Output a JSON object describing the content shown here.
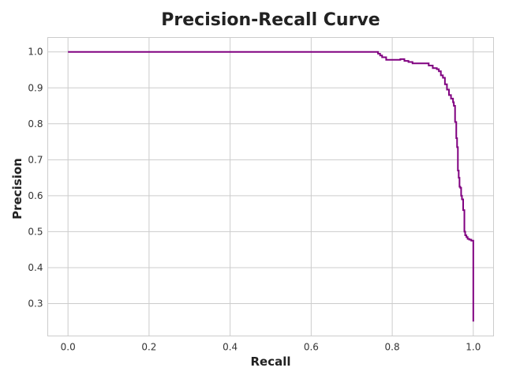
{
  "chart_data": {
    "type": "line",
    "title": "Precision-Recall Curve",
    "xlabel": "Recall",
    "ylabel": "Precision",
    "xlim": [
      -0.05,
      1.05
    ],
    "ylim": [
      0.21,
      1.04
    ],
    "xticks": [
      0.0,
      0.2,
      0.4,
      0.6,
      0.8,
      1.0
    ],
    "xtick_labels": [
      "0.0",
      "0.2",
      "0.4",
      "0.6",
      "0.8",
      "1.0"
    ],
    "yticks": [
      0.3,
      0.4,
      0.5,
      0.6,
      0.7,
      0.8,
      0.9,
      1.0
    ],
    "ytick_labels": [
      "0.3",
      "0.4",
      "0.5",
      "0.6",
      "0.7",
      "0.8",
      "0.9",
      "1.0"
    ],
    "grid": true,
    "line_color": "#800080",
    "series": [
      {
        "step": true,
        "x": [
          0.0,
          0.76,
          0.765,
          0.77,
          0.775,
          0.785,
          0.82,
          0.83,
          0.84,
          0.85,
          0.86,
          0.88,
          0.89,
          0.9,
          0.905,
          0.91,
          0.915,
          0.92,
          0.925,
          0.93,
          0.935,
          0.94,
          0.945,
          0.95,
          0.952,
          0.955,
          0.958,
          0.96,
          0.962,
          0.964,
          0.966,
          0.968,
          0.97,
          0.972,
          0.975,
          0.978,
          0.98,
          0.983,
          0.986,
          0.99,
          0.995,
          1.0,
          1.0
        ],
        "y": [
          1.0,
          1.0,
          0.995,
          0.99,
          0.985,
          0.978,
          0.98,
          0.975,
          0.972,
          0.968,
          0.968,
          0.968,
          0.962,
          0.955,
          0.955,
          0.952,
          0.946,
          0.935,
          0.928,
          0.91,
          0.895,
          0.88,
          0.87,
          0.86,
          0.85,
          0.805,
          0.76,
          0.735,
          0.67,
          0.65,
          0.625,
          0.622,
          0.6,
          0.59,
          0.56,
          0.5,
          0.49,
          0.485,
          0.48,
          0.478,
          0.475,
          0.47,
          0.25
        ]
      }
    ]
  }
}
